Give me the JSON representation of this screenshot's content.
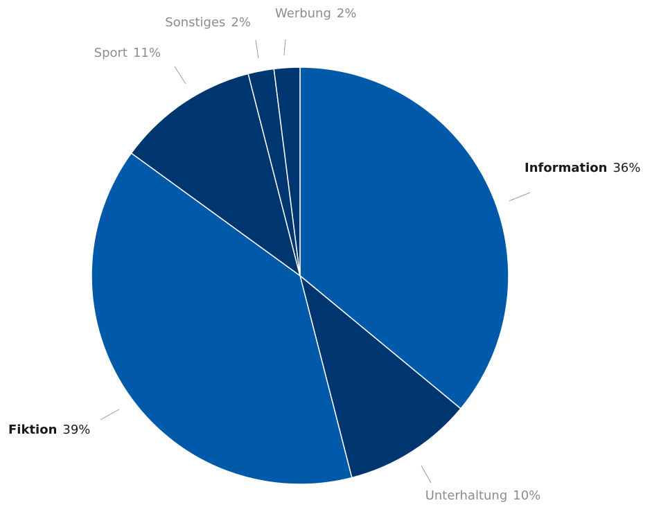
{
  "chart_data": {
    "type": "pie",
    "categories": [
      "Information",
      "Unterhaltung",
      "Fiktion",
      "Sport",
      "Sonstiges",
      "Werbung"
    ],
    "values": [
      36,
      10,
      39,
      11,
      2,
      2
    ],
    "value_labels": [
      "36%",
      "10%",
      "39%",
      "11%",
      "2%",
      "2%"
    ],
    "colors": [
      "#005aa9",
      "#003670",
      "#005aa9",
      "#003670",
      "#003670",
      "#003670"
    ],
    "label_emphasis": [
      true,
      false,
      true,
      false,
      false,
      false
    ]
  }
}
